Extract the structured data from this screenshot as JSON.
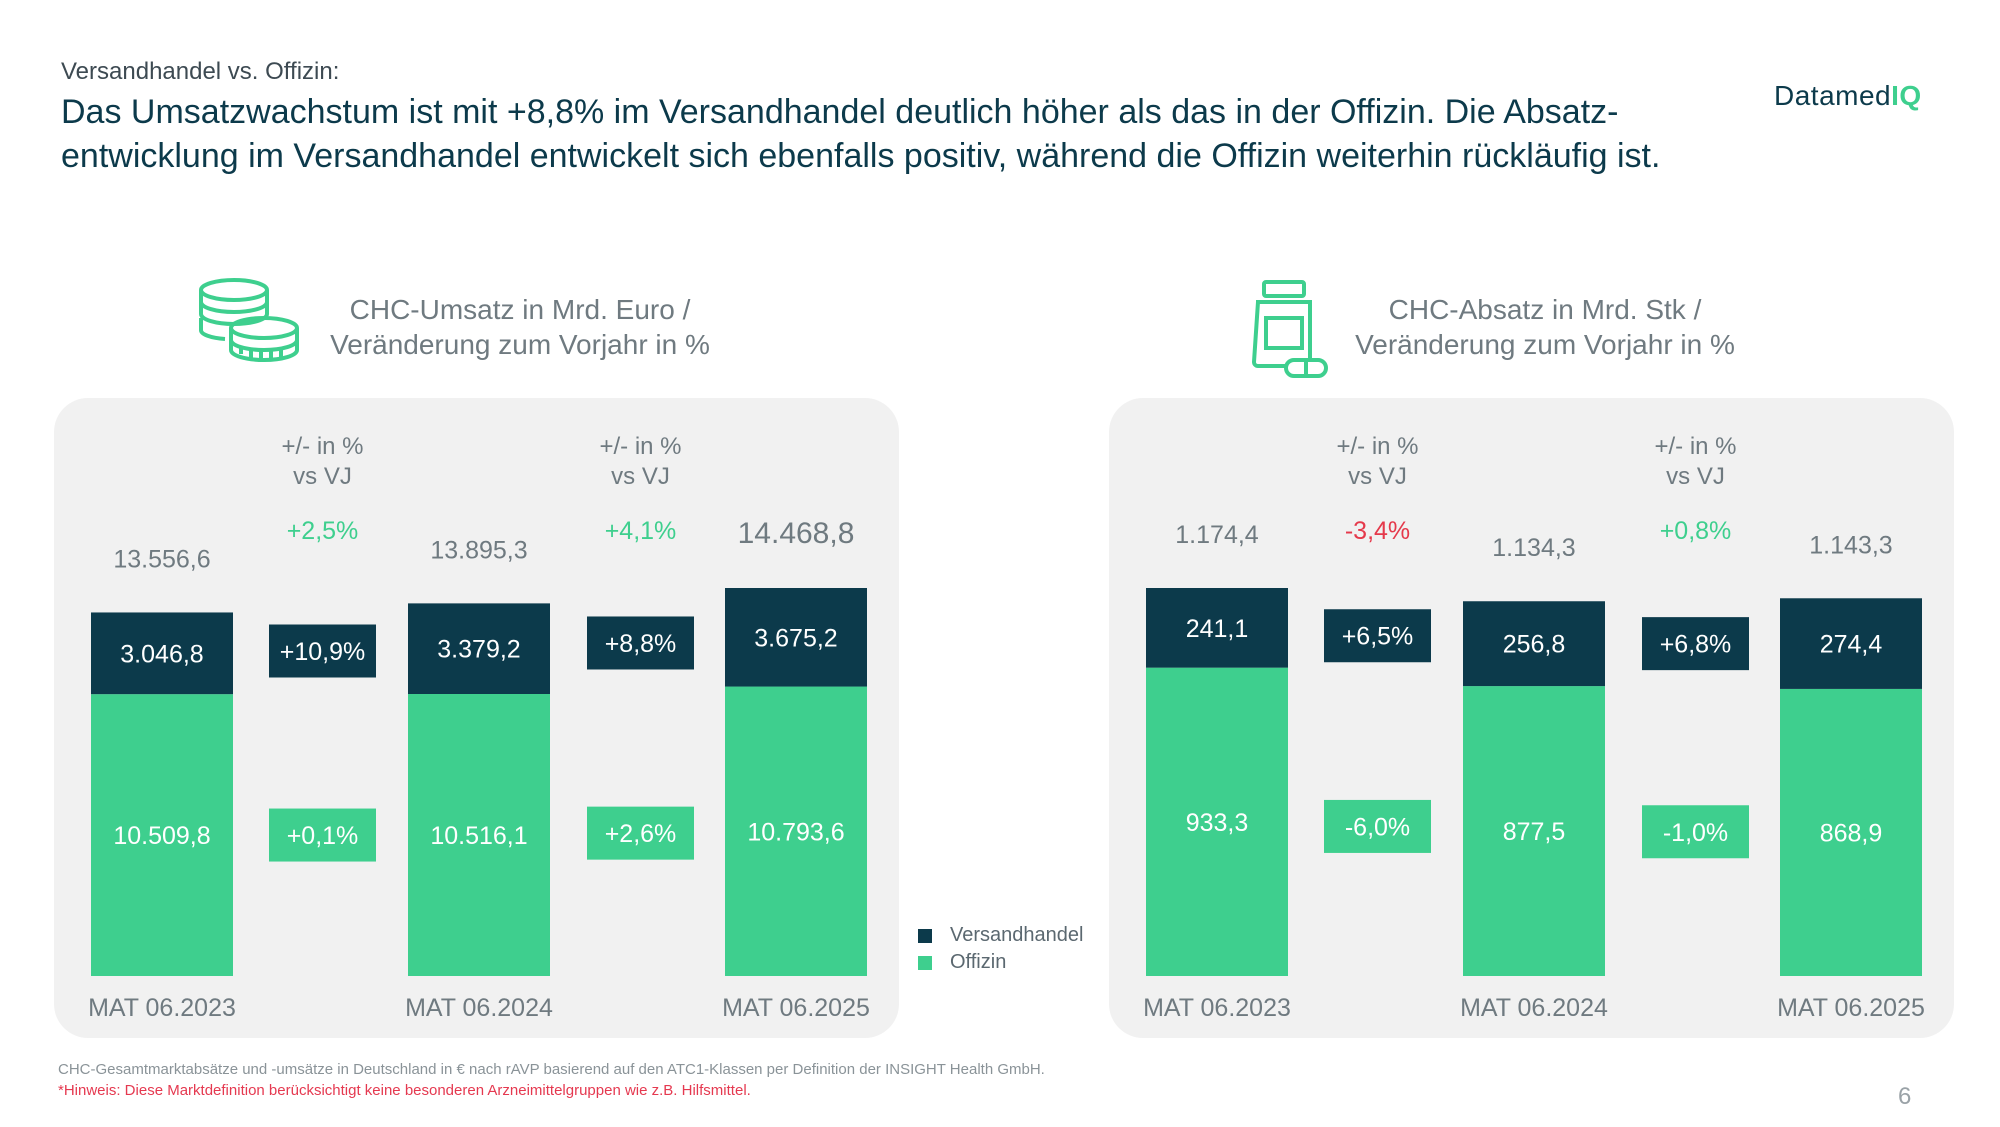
{
  "header": {
    "subtitle": "Versandhandel vs. Offizin:",
    "headline": "Das Umsatzwachstum ist mit +8,8% im Versandhandel deutlich höher als das in der Offizin. Die Absatz-entwicklung im Versandhandel entwickelt sich ebenfalls positiv, während die Offizin weiterhin rückläufig ist."
  },
  "logo": {
    "text_main": "Datamed",
    "text_accent": "IQ"
  },
  "colors": {
    "versand": "#0c3a4b",
    "offizin": "#3ecf8e",
    "positive": "#3ecf8e",
    "negative": "#e5394b",
    "total": "#6f7a80",
    "panel_bg": "#f1f1f1"
  },
  "legend": [
    {
      "label": "Versandhandel",
      "color": "#0c3a4b"
    },
    {
      "label": "Offizin",
      "color": "#3ecf8e"
    }
  ],
  "chart_data": [
    {
      "type": "bar",
      "stacked": true,
      "icon": "coins-icon",
      "title_line1": "CHC-Umsatz in Mrd. Euro /",
      "title_line2": "Veränderung zum Vorjahr in %",
      "change_header_line1": "+/- in %",
      "change_header_line2": "vs VJ",
      "categories": [
        "MAT 06.2023",
        "MAT 06.2024",
        "MAT 06.2025"
      ],
      "series": [
        {
          "name": "Offizin",
          "values": [
            10509.8,
            10516.1,
            10793.6
          ],
          "labels": [
            "10.509,8",
            "10.516,1",
            "10.793,6"
          ]
        },
        {
          "name": "Versandhandel",
          "values": [
            3046.8,
            3379.2,
            3675.2
          ],
          "labels": [
            "3.046,8",
            "3.379,2",
            "3.675,2"
          ]
        }
      ],
      "totals": [
        13556.6,
        13895.3,
        14468.8
      ],
      "total_labels": [
        "13.556,6",
        "13.895,3",
        "14.468,8"
      ],
      "changes": [
        {
          "total": "+2,5%",
          "versand": "+10,9%",
          "offizin": "+0,1%"
        },
        {
          "total": "+4,1%",
          "versand": "+8,8%",
          "offizin": "+2,6%"
        }
      ]
    },
    {
      "type": "bar",
      "stacked": true,
      "icon": "medicine-bottle-icon",
      "title_line1": "CHC-Absatz in Mrd. Stk /",
      "title_line2": "Veränderung zum Vorjahr in %",
      "change_header_line1": "+/- in %",
      "change_header_line2": "vs VJ",
      "categories": [
        "MAT 06.2023",
        "MAT 06.2024",
        "MAT 06.2025"
      ],
      "series": [
        {
          "name": "Offizin",
          "values": [
            933.3,
            877.5,
            868.9
          ],
          "labels": [
            "933,3",
            "877,5",
            "868,9"
          ]
        },
        {
          "name": "Versandhandel",
          "values": [
            241.1,
            256.8,
            274.4
          ],
          "labels": [
            "241,1",
            "256,8",
            "274,4"
          ]
        }
      ],
      "totals": [
        1174.4,
        1134.3,
        1143.3
      ],
      "total_labels": [
        "1.174,4",
        "1.134,3",
        "1.143,3"
      ],
      "changes": [
        {
          "total": "-3,4%",
          "versand": "+6,5%",
          "offizin": "-6,0%"
        },
        {
          "total": "+0,8%",
          "versand": "+6,8%",
          "offizin": "-1,0%"
        }
      ]
    }
  ],
  "footer": {
    "note": "CHC-Gesamtmarktabsätze und -umsätze in Deutschland in € nach rAVP basierend auf den ATC1-Klassen per Definition der INSIGHT Health GmbH.",
    "hint": "*Hinweis: Diese Marktdefinition berücksichtigt keine besonderen Arzneimittelgruppen wie z.B. Hilfsmittel.",
    "page_number": "6"
  }
}
